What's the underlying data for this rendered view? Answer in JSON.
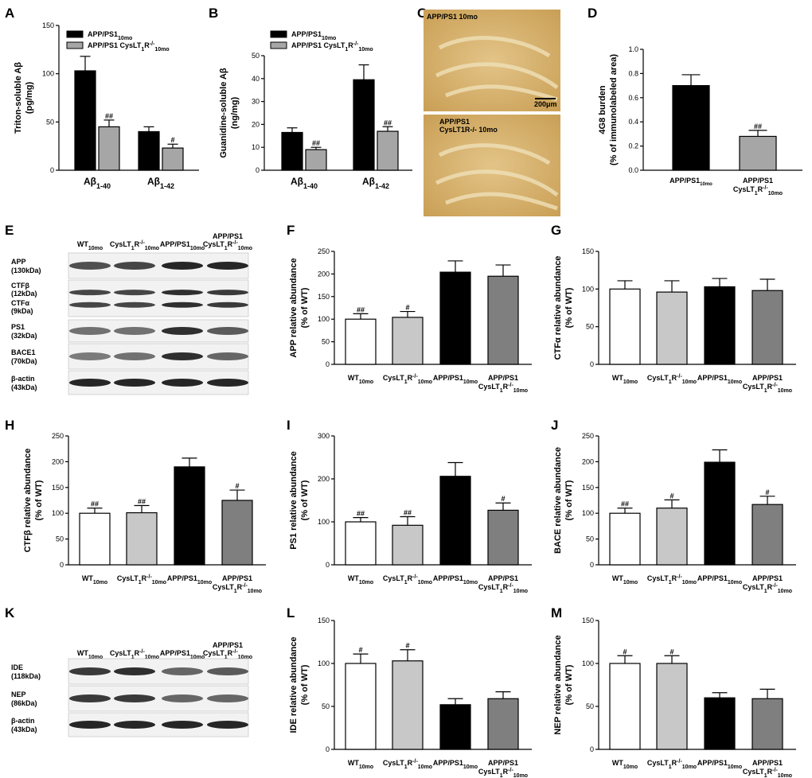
{
  "panel_labels": [
    "A",
    "B",
    "C",
    "D",
    "E",
    "F",
    "G",
    "H",
    "I",
    "J",
    "K",
    "L",
    "M"
  ],
  "chart_data": [
    {
      "id": "A",
      "type": "bar",
      "ylabel": [
        "Triton-soluble Aβ",
        "(pg/mg)"
      ],
      "ylim": [
        0,
        150
      ],
      "yticks": [
        0,
        50,
        100,
        150
      ],
      "categories": [
        "Aβ1-40",
        "Aβ1-42"
      ],
      "legend": [
        "APP/PS1 10mo",
        "APP/PS1 CysLT1R-/- 10mo"
      ],
      "series": [
        {
          "name": "APP/PS1 10mo",
          "values": [
            103,
            40
          ],
          "errors": [
            15,
            5
          ],
          "sig": [
            "",
            ""
          ]
        },
        {
          "name": "APP/PS1 CysLT1R-/- 10mo",
          "values": [
            45,
            23
          ],
          "errors": [
            7,
            4
          ],
          "sig": [
            "##",
            "#"
          ]
        }
      ]
    },
    {
      "id": "B",
      "type": "bar",
      "ylabel": [
        "Guanidine-soluble Aβ",
        "(ng/mg)"
      ],
      "ylim": [
        0,
        50
      ],
      "yticks": [
        0,
        10,
        20,
        30,
        40,
        50
      ],
      "categories": [
        "Aβ1-40",
        "Aβ1-42"
      ],
      "legend": [
        "APP/PS1 10mo",
        "APP/PS1 CysLT1R-/- 10mo"
      ],
      "series": [
        {
          "name": "APP/PS1 10mo",
          "values": [
            16.5,
            39.5
          ],
          "errors": [
            2,
            6.5
          ],
          "sig": [
            "",
            ""
          ]
        },
        {
          "name": "APP/PS1 CysLT1R-/- 10mo",
          "values": [
            9,
            17
          ],
          "errors": [
            1,
            2
          ],
          "sig": [
            "##",
            "##"
          ]
        }
      ]
    },
    {
      "id": "D",
      "type": "bar",
      "ylabel": [
        "4G8 burden",
        "(% of immunolabeled area)"
      ],
      "ylim": [
        0,
        1.0
      ],
      "yticks": [
        "0.0",
        "0.2",
        "0.4",
        "0.6",
        "0.8",
        "1.0"
      ],
      "categories": [
        "APP/PS1 10mo",
        "APP/PS1 CysLT1R-/- 10mo"
      ],
      "values": [
        0.7,
        0.28
      ],
      "errors": [
        0.09,
        0.05
      ],
      "sig": [
        "",
        "##"
      ]
    },
    {
      "id": "F",
      "type": "bar",
      "ylabel": [
        "APP relative abundance",
        "(% of WT)"
      ],
      "ylim": [
        0,
        250
      ],
      "yticks": [
        0,
        50,
        100,
        150,
        200,
        250
      ],
      "categories": [
        "WT 10mo",
        "CysLT1R-/- 10mo",
        "APP/PS1 10mo",
        "APP/PS1 CysLT1R-/- 10mo"
      ],
      "values": [
        100,
        104,
        204,
        195
      ],
      "errors": [
        12,
        13,
        25,
        25
      ],
      "sig": [
        "##",
        "#",
        "",
        ""
      ]
    },
    {
      "id": "G",
      "type": "bar",
      "ylabel": [
        "CTFα relative abundance",
        "(% of WT)"
      ],
      "ylim": [
        0,
        150
      ],
      "yticks": [
        0,
        50,
        100,
        150
      ],
      "categories": [
        "WT 10mo",
        "CysLT1R-/- 10mo",
        "APP/PS1 10mo",
        "APP/PS1 CysLT1R-/- 10mo"
      ],
      "values": [
        100,
        96,
        103,
        98
      ],
      "errors": [
        11,
        15,
        11,
        15
      ],
      "sig": [
        "",
        "",
        "",
        ""
      ]
    },
    {
      "id": "H",
      "type": "bar",
      "ylabel": [
        "CTFβ relative abundance",
        "(% of WT)"
      ],
      "ylim": [
        0,
        250
      ],
      "yticks": [
        0,
        50,
        100,
        150,
        200,
        250
      ],
      "categories": [
        "WT 10mo",
        "CysLT1R-/- 10mo",
        "APP/PS1 10mo",
        "APP/PS1 CysLT1R-/- 10mo"
      ],
      "values": [
        100,
        101,
        190,
        125
      ],
      "errors": [
        10,
        14,
        17,
        20
      ],
      "sig": [
        "##",
        "##",
        "",
        "#"
      ]
    },
    {
      "id": "I",
      "type": "bar",
      "ylabel": [
        "PS1 relative abundance",
        "(% of WT)"
      ],
      "ylim": [
        0,
        300
      ],
      "yticks": [
        0,
        100,
        200,
        300
      ],
      "categories": [
        "WT 10mo",
        "CysLT1R-/- 10mo",
        "APP/PS1 10mo",
        "APP/PS1 CysLT1R-/- 10mo"
      ],
      "values": [
        100,
        92,
        206,
        127
      ],
      "errors": [
        10,
        20,
        32,
        17
      ],
      "sig": [
        "##",
        "##",
        "",
        "#"
      ]
    },
    {
      "id": "J",
      "type": "bar",
      "ylabel": [
        "BACE relative abundance",
        "(% of WT)"
      ],
      "ylim": [
        0,
        250
      ],
      "yticks": [
        0,
        50,
        100,
        150,
        200,
        250
      ],
      "categories": [
        "WT 10mo",
        "CysLT1R-/- 10mo",
        "APP/PS1 10mo",
        "APP/PS1 CysLT1R-/- 10mo"
      ],
      "values": [
        100,
        110,
        199,
        117
      ],
      "errors": [
        10,
        16,
        24,
        16
      ],
      "sig": [
        "##",
        "#",
        "",
        "#"
      ]
    },
    {
      "id": "L",
      "type": "bar",
      "ylabel": [
        "IDE relative abundance",
        "(% of WT)"
      ],
      "ylim": [
        0,
        150
      ],
      "yticks": [
        0,
        50,
        100,
        150
      ],
      "categories": [
        "WT 10mo",
        "CysLT1R-/- 10mo",
        "APP/PS1 10mo",
        "APP/PS1 CysLT1R-/- 10mo"
      ],
      "values": [
        100,
        103,
        52,
        59
      ],
      "errors": [
        11,
        13,
        7,
        8
      ],
      "sig": [
        "#",
        "#",
        "",
        ""
      ]
    },
    {
      "id": "M",
      "type": "bar",
      "ylabel": [
        "NEP relative abundance",
        "(% of WT)"
      ],
      "ylim": [
        0,
        150
      ],
      "yticks": [
        0,
        50,
        100,
        150
      ],
      "categories": [
        "WT 10mo",
        "CysLT1R-/- 10mo",
        "APP/PS1 10mo",
        "APP/PS1 CysLT1R-/- 10mo"
      ],
      "values": [
        100,
        100,
        60,
        59
      ],
      "errors": [
        9,
        9,
        6,
        11
      ],
      "sig": [
        "#",
        "#",
        "",
        ""
      ]
    }
  ],
  "histology": {
    "top_label": "APP/PS1 10mo",
    "bottom_label": [
      "APP/PS1",
      "CysLT1R-/- 10mo"
    ],
    "scale_bar": "200μm"
  },
  "western_E": {
    "lanes": [
      "WT 10mo",
      "CysLT1R-/- 10mo",
      "APP/PS1 10mo",
      "APP/PS1 CysLT1R-/- 10mo"
    ],
    "bands": [
      {
        "name": "APP",
        "kda": "(130kDa)"
      },
      {
        "name": "CTFβ",
        "kda": "(12kDa)",
        "name2": "CTFα",
        "kda2": "(9kDa)"
      },
      {
        "name": "PS1",
        "kda": "(32kDa)"
      },
      {
        "name": "BACE1",
        "kda": "(70kDa)"
      },
      {
        "name": "β-actin",
        "kda": "(43kDa)"
      }
    ]
  },
  "western_K": {
    "lanes": [
      "WT 10mo",
      "CysLT1R-/- 10mo",
      "APP/PS1 10mo",
      "APP/PS1 CysLT1R-/- 10mo"
    ],
    "bands": [
      {
        "name": "IDE",
        "kda": "(118kDa)"
      },
      {
        "name": "NEP",
        "kda": "(86kDa)"
      },
      {
        "name": "β-actin",
        "kda": "(43kDa)"
      }
    ]
  },
  "colors": {
    "black": "#000000",
    "gray_light": "#c8c8c8",
    "gray_mid": "#a6a6a6",
    "gray_dark": "#7f7f7f",
    "white": "#ffffff",
    "histo_bg": "#d9b574"
  }
}
